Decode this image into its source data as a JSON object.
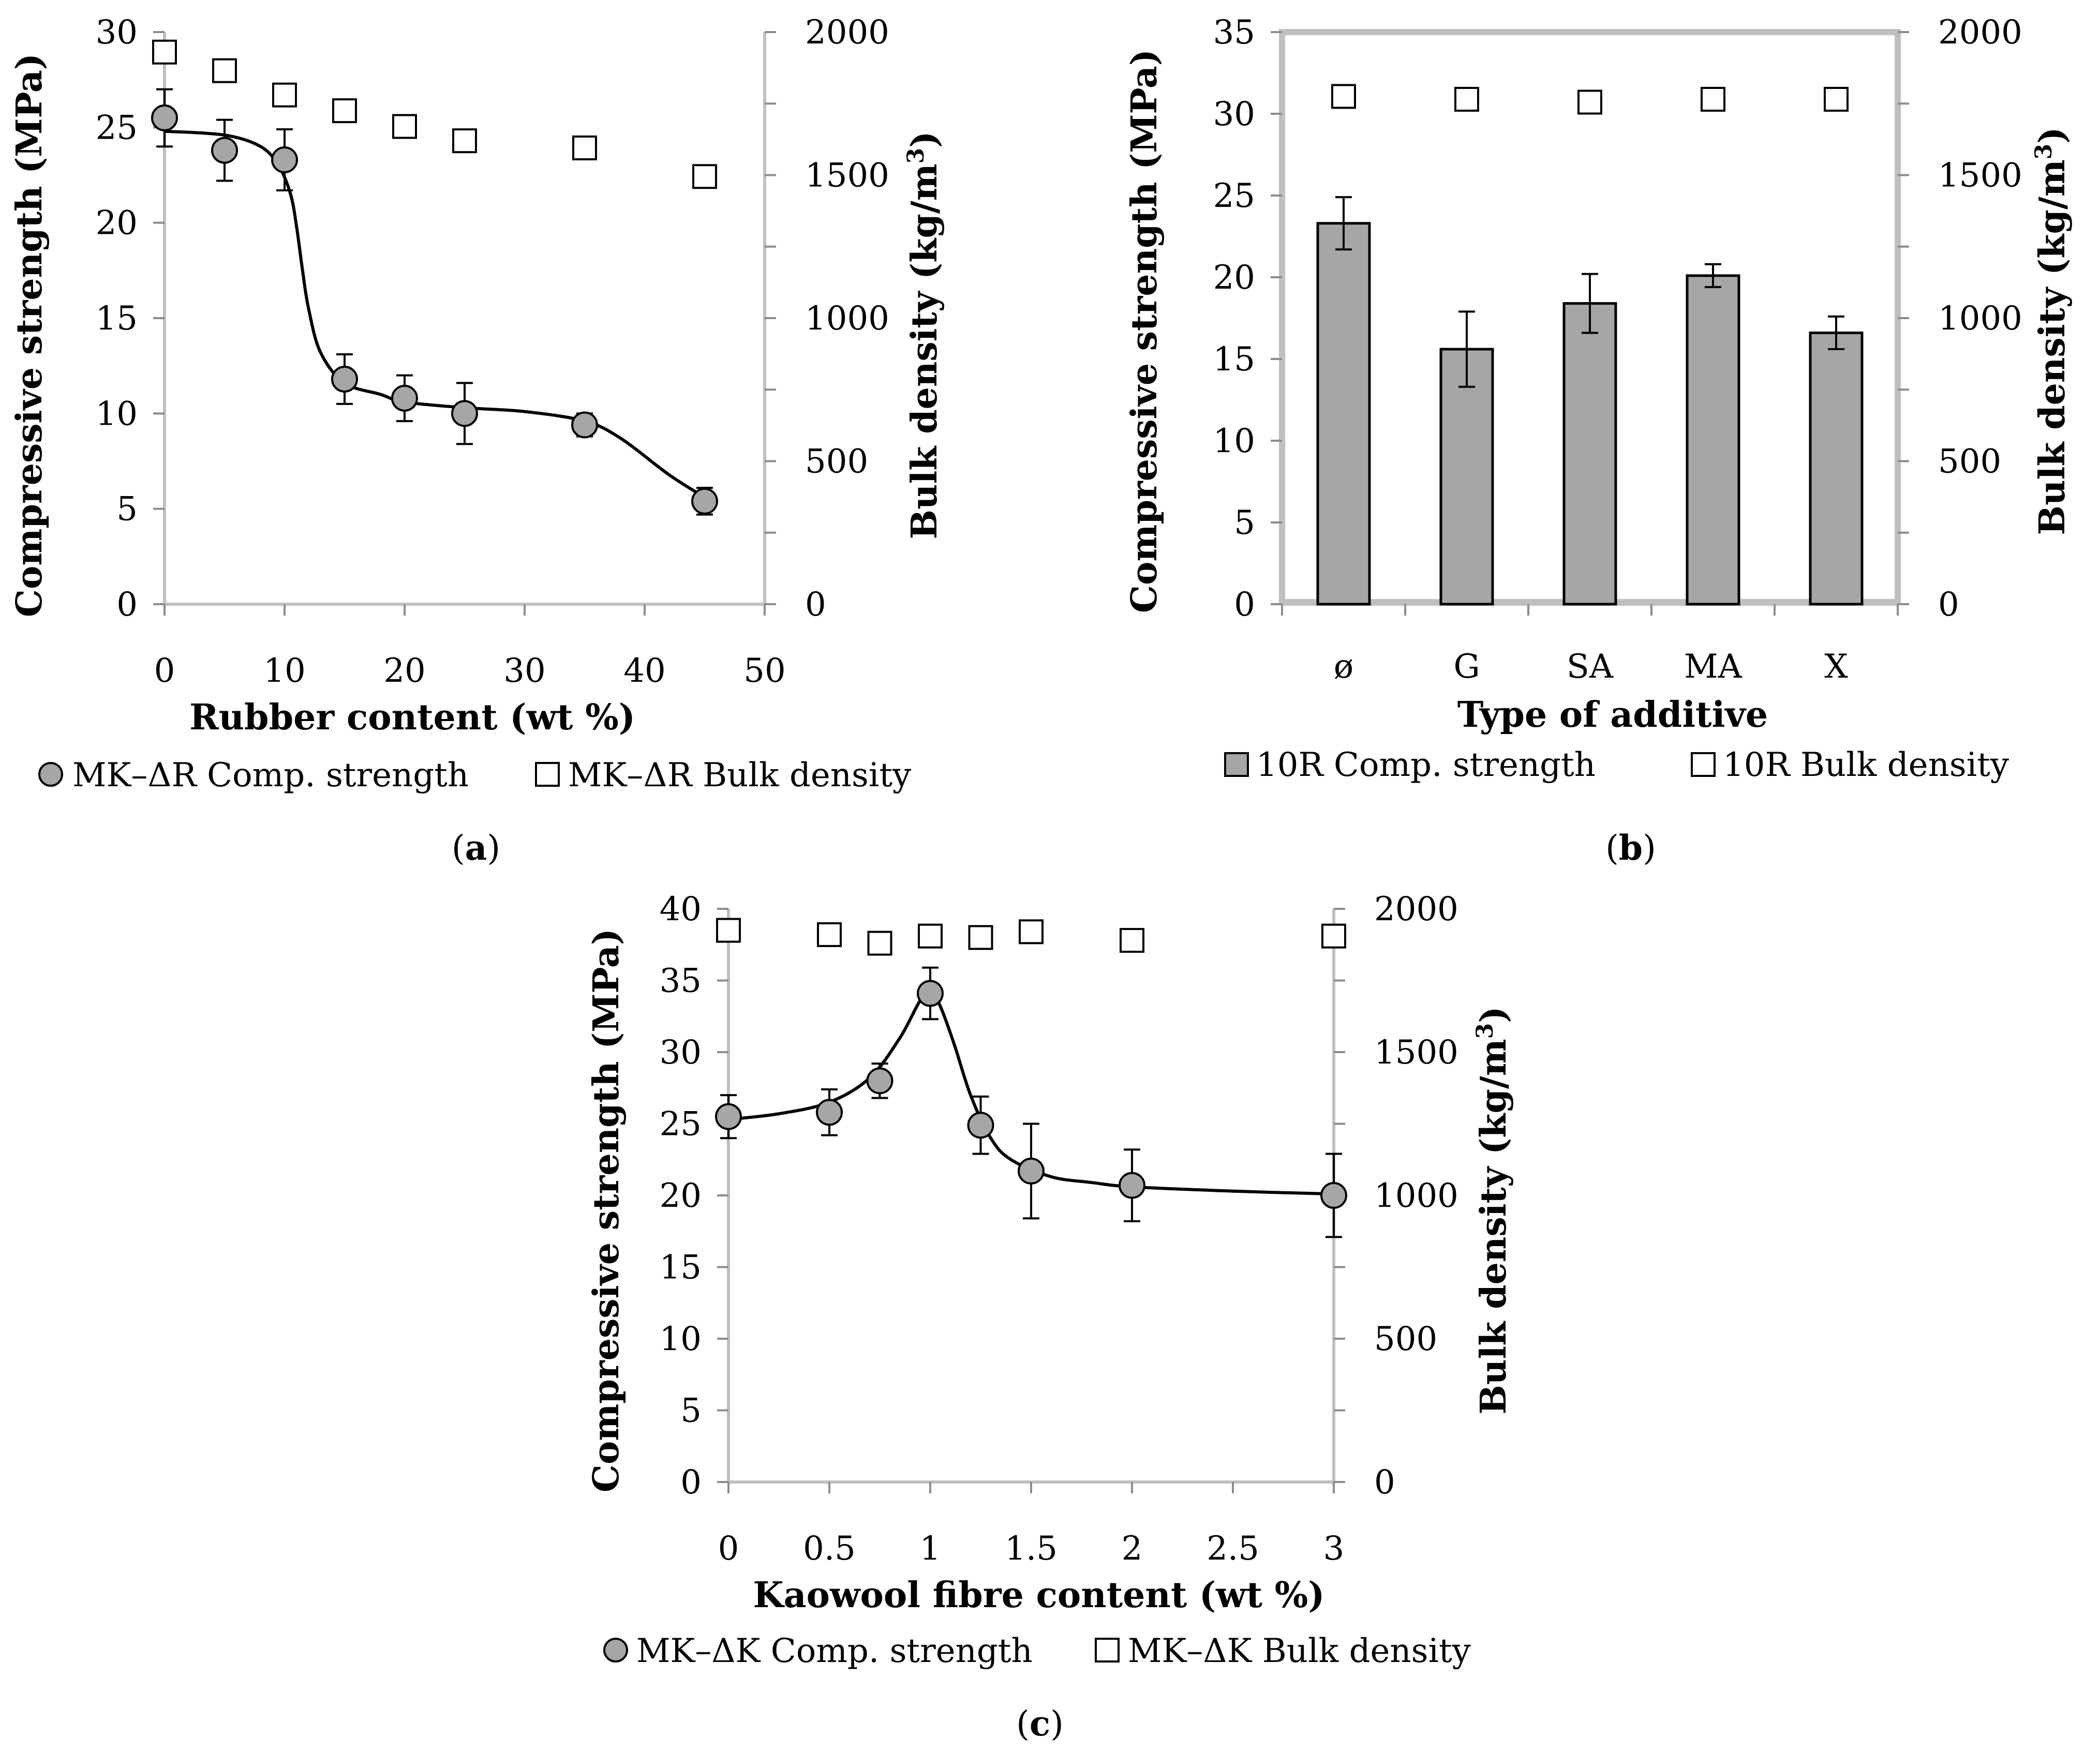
{
  "chart_data": [
    {
      "id": "a",
      "type": "scatter",
      "panel_label": "a",
      "xlabel": "Rubber content (wt %)",
      "ylabel": "Compressive strength (MPa)",
      "y2label_prefix": "Bulk density (kg/m",
      "y2label_sup": "3",
      "y2label_suffix": ")",
      "xlim": [
        0,
        50
      ],
      "ylim": [
        0,
        30
      ],
      "y2lim": [
        0,
        2000
      ],
      "xticks": [
        0,
        10,
        20,
        30,
        40,
        50
      ],
      "yticks": [
        0,
        5,
        10,
        15,
        20,
        25,
        30
      ],
      "y2ticks": [
        0,
        500,
        1000,
        1500,
        2000
      ],
      "series": [
        {
          "name": "MK–ΔR Comp. strength",
          "axis": "left",
          "marker": "circle",
          "x": [
            0,
            5,
            10,
            15,
            20,
            25,
            35,
            45
          ],
          "values": [
            25.5,
            23.8,
            23.3,
            11.8,
            10.8,
            10.0,
            9.4,
            5.4
          ],
          "err": [
            1.5,
            1.6,
            1.6,
            1.3,
            1.2,
            1.6,
            0.6,
            0.7
          ]
        },
        {
          "name": "MK–ΔR Bulk density",
          "axis": "right",
          "marker": "square",
          "x": [
            0,
            5,
            10,
            15,
            20,
            25,
            35,
            45
          ],
          "values": [
            1930,
            1865,
            1780,
            1725,
            1670,
            1620,
            1595,
            1495
          ]
        }
      ],
      "fit_curve": {
        "x": [
          0,
          5,
          8,
          9.5,
          10.5,
          11,
          11.5,
          12,
          13,
          15,
          18,
          20,
          25,
          30,
          35,
          38,
          42,
          45
        ],
        "values": [
          24.8,
          24.6,
          24.0,
          23.0,
          21.5,
          19.8,
          17.5,
          15.5,
          13.2,
          11.6,
          11.0,
          10.6,
          10.3,
          10.1,
          9.6,
          8.7,
          6.8,
          5.6
        ]
      }
    },
    {
      "id": "b",
      "type": "bar",
      "panel_label": "b",
      "xlabel": "Type of additive",
      "ylabel": "Compressive strength (MPa)",
      "y2label_prefix": "Bulk density (kg/m",
      "y2label_sup": "3",
      "y2label_suffix": ")",
      "categories": [
        "ø",
        "G",
        "SA",
        "MA",
        "X"
      ],
      "ylim": [
        0,
        35
      ],
      "y2lim": [
        0,
        2000
      ],
      "yticks": [
        0,
        5,
        10,
        15,
        20,
        25,
        30,
        35
      ],
      "y2ticks": [
        0,
        500,
        1000,
        1500,
        2000
      ],
      "series": [
        {
          "name": "10R Comp. strength",
          "axis": "left",
          "marker": "bar",
          "values": [
            23.3,
            15.6,
            18.4,
            20.1,
            16.6
          ],
          "err": [
            1.6,
            2.3,
            1.8,
            0.7,
            1.0
          ]
        },
        {
          "name": "10R Bulk density",
          "axis": "right",
          "marker": "square",
          "values": [
            1775,
            1765,
            1755,
            1765,
            1765
          ]
        }
      ]
    },
    {
      "id": "c",
      "type": "scatter",
      "panel_label": "c",
      "xlabel": "Kaowool fibre content (wt %)",
      "ylabel": "Compressive strength (MPa)",
      "y2label_prefix": "Bulk density (kg/m",
      "y2label_sup": "3",
      "y2label_suffix": ")",
      "xlim": [
        0,
        3
      ],
      "ylim": [
        0,
        40
      ],
      "y2lim": [
        0,
        2000
      ],
      "xticks": [
        0,
        0.5,
        1,
        1.5,
        2,
        2.5,
        3
      ],
      "yticks": [
        0,
        5,
        10,
        15,
        20,
        25,
        30,
        35,
        40
      ],
      "y2ticks": [
        0,
        500,
        1000,
        1500,
        2000
      ],
      "series": [
        {
          "name": "MK–ΔK Comp. strength",
          "axis": "left",
          "marker": "circle",
          "x": [
            0,
            0.5,
            0.75,
            1,
            1.25,
            1.5,
            2,
            3
          ],
          "values": [
            25.5,
            25.8,
            28.0,
            34.1,
            24.9,
            21.7,
            20.7,
            20.0
          ],
          "err": [
            1.5,
            1.6,
            1.2,
            1.8,
            2.0,
            3.3,
            2.5,
            2.9
          ]
        },
        {
          "name": "MK–ΔK Bulk density",
          "axis": "right",
          "marker": "square",
          "x": [
            0,
            0.5,
            0.75,
            1,
            1.25,
            1.5,
            2,
            3
          ],
          "values": [
            1925,
            1910,
            1880,
            1905,
            1900,
            1920,
            1890,
            1905
          ]
        }
      ],
      "fit_curve": {
        "x": [
          0,
          0.25,
          0.5,
          0.7,
          0.85,
          0.95,
          1.0,
          1.05,
          1.12,
          1.2,
          1.3,
          1.4,
          1.6,
          1.8,
          2.0,
          2.5,
          3.0
        ],
        "values": [
          25.3,
          25.7,
          26.5,
          28.2,
          31.0,
          33.6,
          34.2,
          33.2,
          30.5,
          27.0,
          24.0,
          22.5,
          21.3,
          20.9,
          20.6,
          20.3,
          20.1
        ]
      }
    }
  ]
}
